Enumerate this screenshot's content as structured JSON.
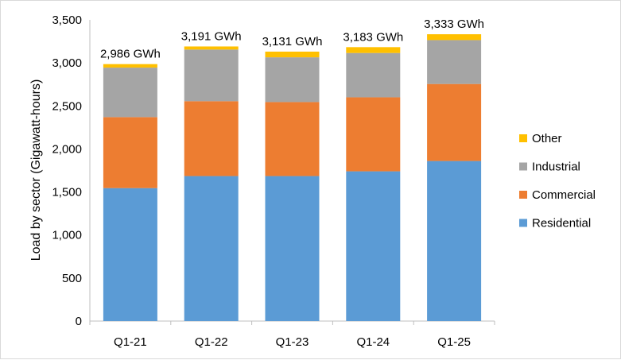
{
  "chart_data": {
    "type": "bar",
    "stacked": true,
    "ylabel": "Load by sector (Gigawatt-hours)",
    "xlabel": "",
    "ylim": [
      0,
      3500
    ],
    "ytick_step": 500,
    "yticks": [
      "0",
      "500",
      "1,000",
      "1,500",
      "2,000",
      "2,500",
      "3,000",
      "3,500"
    ],
    "categories": [
      "Q1-21",
      "Q1-22",
      "Q1-23",
      "Q1-24",
      "Q1-25"
    ],
    "series": [
      {
        "name": "Residential",
        "color": "#5b9bd5",
        "values": [
          1545,
          1685,
          1685,
          1740,
          1860
        ]
      },
      {
        "name": "Commercial",
        "color": "#ed7d31",
        "values": [
          825,
          870,
          860,
          860,
          895
        ]
      },
      {
        "name": "Industrial",
        "color": "#a5a5a5",
        "values": [
          575,
          600,
          520,
          515,
          510
        ]
      },
      {
        "name": "Other",
        "color": "#ffc000",
        "values": [
          41,
          36,
          66,
          68,
          68
        ]
      }
    ],
    "totals": [
      "2,986 GWh",
      "3,191 GWh",
      "3,131 GWh",
      "3,183 GWh",
      "3,333 GWh"
    ],
    "grid": false,
    "legend_position": "right"
  }
}
